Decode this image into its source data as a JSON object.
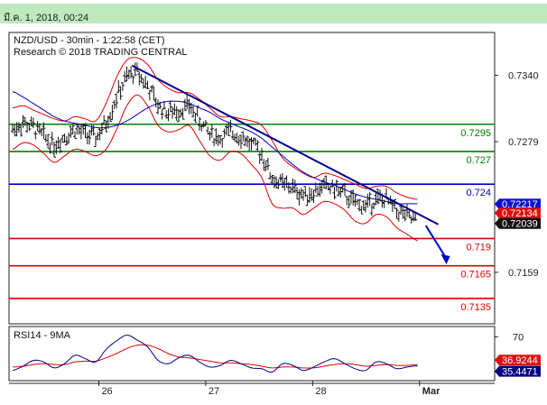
{
  "header": {
    "timestamp": "มี.ค. 1, 2018, 00:24"
  },
  "chart_data": {
    "type": "line",
    "title": "NZD/USD - 30min - 1:22:58 (CET)",
    "subtitle": "Research © 2018 TRADING CENTRAL",
    "price_axis": {
      "ticks": [
        "0.7340",
        "0.7279",
        "0.7159"
      ],
      "tick_values": [
        0.734,
        0.7279,
        0.7159
      ],
      "ylim": [
        0.7115,
        0.7376
      ]
    },
    "x_axis": {
      "labels": [
        "26",
        "27",
        "28",
        "Mar"
      ],
      "label_positions": [
        8.3,
        18.6,
        28.9,
        39.2
      ],
      "xlim": [
        0,
        44
      ]
    },
    "levels": [
      {
        "label": "0.7295",
        "value": 0.7295,
        "color": "#008000",
        "text_color": "#008000"
      },
      {
        "label": "0.727",
        "value": 0.727,
        "color": "#008000",
        "text_color": "#008000"
      },
      {
        "label": "0.724",
        "value": 0.724,
        "color": "#0000cc",
        "text_color": "#0000cc"
      },
      {
        "label": "0.719",
        "value": 0.719,
        "color": "#dd0000",
        "text_color": "#dd0000"
      },
      {
        "label": "0.7165",
        "value": 0.7165,
        "color": "#dd0000",
        "text_color": "#dd0000"
      },
      {
        "label": "0.7135",
        "value": 0.7135,
        "color": "#dd0000",
        "text_color": "#dd0000"
      }
    ],
    "price_tags": [
      {
        "label": "0.72217",
        "value": 0.72217,
        "color": "#1010cc"
      },
      {
        "label": "0.72134",
        "value": 0.72134,
        "color": "#dd1010"
      },
      {
        "label": "0.72039",
        "value": 0.72039,
        "color": "#111111"
      }
    ],
    "trendline": {
      "points": [
        [
          11.5,
          0.7349
        ],
        [
          41.0,
          0.7203
        ]
      ],
      "color": "#00008b"
    },
    "forecast_arrow": {
      "points": [
        [
          39.8,
          0.7202
        ],
        [
          41.7,
          0.7168
        ]
      ],
      "color": "#0000cc"
    },
    "price_series": {
      "name": "",
      "x": [
        0,
        1,
        2,
        3,
        4,
        5,
        6,
        7,
        8,
        9,
        10,
        11,
        12,
        13,
        14,
        15,
        16,
        17,
        18,
        19,
        20,
        21,
        22,
        23,
        24,
        25,
        26,
        27,
        28,
        29,
        30,
        31,
        32,
        33,
        34,
        35,
        36,
        37,
        38,
        39
      ],
      "close": [
        0.729,
        0.7296,
        0.7292,
        0.7284,
        0.7276,
        0.7284,
        0.729,
        0.7286,
        0.7282,
        0.7296,
        0.732,
        0.7338,
        0.7343,
        0.733,
        0.7312,
        0.7306,
        0.7308,
        0.7312,
        0.7298,
        0.7286,
        0.7282,
        0.7288,
        0.7284,
        0.7276,
        0.7268,
        0.7245,
        0.724,
        0.7236,
        0.723,
        0.7233,
        0.7238,
        0.7236,
        0.723,
        0.7222,
        0.722,
        0.7226,
        0.7225,
        0.7216,
        0.721,
        0.7204
      ],
      "range": 0.0009
    },
    "moving_average": {
      "name": "",
      "color": "#0000cc",
      "values": [
        0.7325,
        0.732,
        0.7314,
        0.7308,
        0.7302,
        0.7298,
        0.7296,
        0.7294,
        0.7292,
        0.7292,
        0.7294,
        0.7298,
        0.7304,
        0.731,
        0.7314,
        0.7316,
        0.7316,
        0.7314,
        0.731,
        0.7306,
        0.73,
        0.7296,
        0.7292,
        0.7288,
        0.7282,
        0.7274,
        0.7266,
        0.7258,
        0.7251,
        0.7246,
        0.7242,
        0.7239,
        0.7235,
        0.7231,
        0.7228,
        0.7226,
        0.7224,
        0.7222,
        0.7222,
        0.7222
      ]
    },
    "bollinger_upper": {
      "color": "#dd0000",
      "values": [
        0.731,
        0.7312,
        0.7308,
        0.7304,
        0.73,
        0.7298,
        0.7302,
        0.73,
        0.7298,
        0.7314,
        0.7338,
        0.7354,
        0.7356,
        0.735,
        0.7336,
        0.7328,
        0.7324,
        0.7324,
        0.7318,
        0.731,
        0.7302,
        0.7302,
        0.73,
        0.7298,
        0.7294,
        0.728,
        0.7264,
        0.7256,
        0.725,
        0.7246,
        0.725,
        0.7248,
        0.7244,
        0.724,
        0.7236,
        0.7238,
        0.7238,
        0.7232,
        0.7228,
        0.7226
      ]
    },
    "bollinger_lower": {
      "color": "#dd0000",
      "values": [
        0.7272,
        0.7278,
        0.7276,
        0.7268,
        0.726,
        0.7266,
        0.7272,
        0.727,
        0.7266,
        0.7272,
        0.729,
        0.7312,
        0.7322,
        0.7312,
        0.7294,
        0.7288,
        0.729,
        0.7294,
        0.728,
        0.7266,
        0.7262,
        0.727,
        0.7268,
        0.7258,
        0.7246,
        0.7222,
        0.7218,
        0.7218,
        0.7212,
        0.7218,
        0.7224,
        0.7222,
        0.7216,
        0.7206,
        0.7204,
        0.7212,
        0.721,
        0.72,
        0.7194,
        0.7188
      ]
    },
    "rsi_panel": {
      "label": "RSI14 - 9MA",
      "ticks": [
        "70"
      ],
      "tick_values": [
        70
      ],
      "ylim": [
        20,
        80
      ],
      "rsi": {
        "color": "#000080",
        "values": [
          30,
          35,
          42,
          40,
          33,
          38,
          48,
          44,
          40,
          55,
          65,
          72,
          66,
          58,
          42,
          38,
          45,
          48,
          40,
          34,
          36,
          42,
          38,
          33,
          32,
          28,
          38,
          36,
          30,
          34,
          40,
          44,
          38,
          32,
          30,
          40,
          38,
          32,
          34,
          35.4471
        ]
      },
      "ma": {
        "color": "#dd0000",
        "values": [
          34,
          35,
          37,
          38,
          37,
          37,
          40,
          41,
          41,
          45,
          50,
          56,
          60,
          60,
          56,
          50,
          46,
          45,
          43,
          41,
          39,
          39,
          38,
          37,
          35,
          33,
          34,
          34,
          33,
          33,
          35,
          37,
          38,
          37,
          35,
          36,
          37,
          36,
          36,
          36.9244
        ]
      },
      "tags": [
        {
          "label": "36.9244",
          "value": 36.9244,
          "color": "#dd1010"
        },
        {
          "label": "35.4471",
          "value": 35.4471,
          "color": "#000080"
        }
      ]
    }
  }
}
